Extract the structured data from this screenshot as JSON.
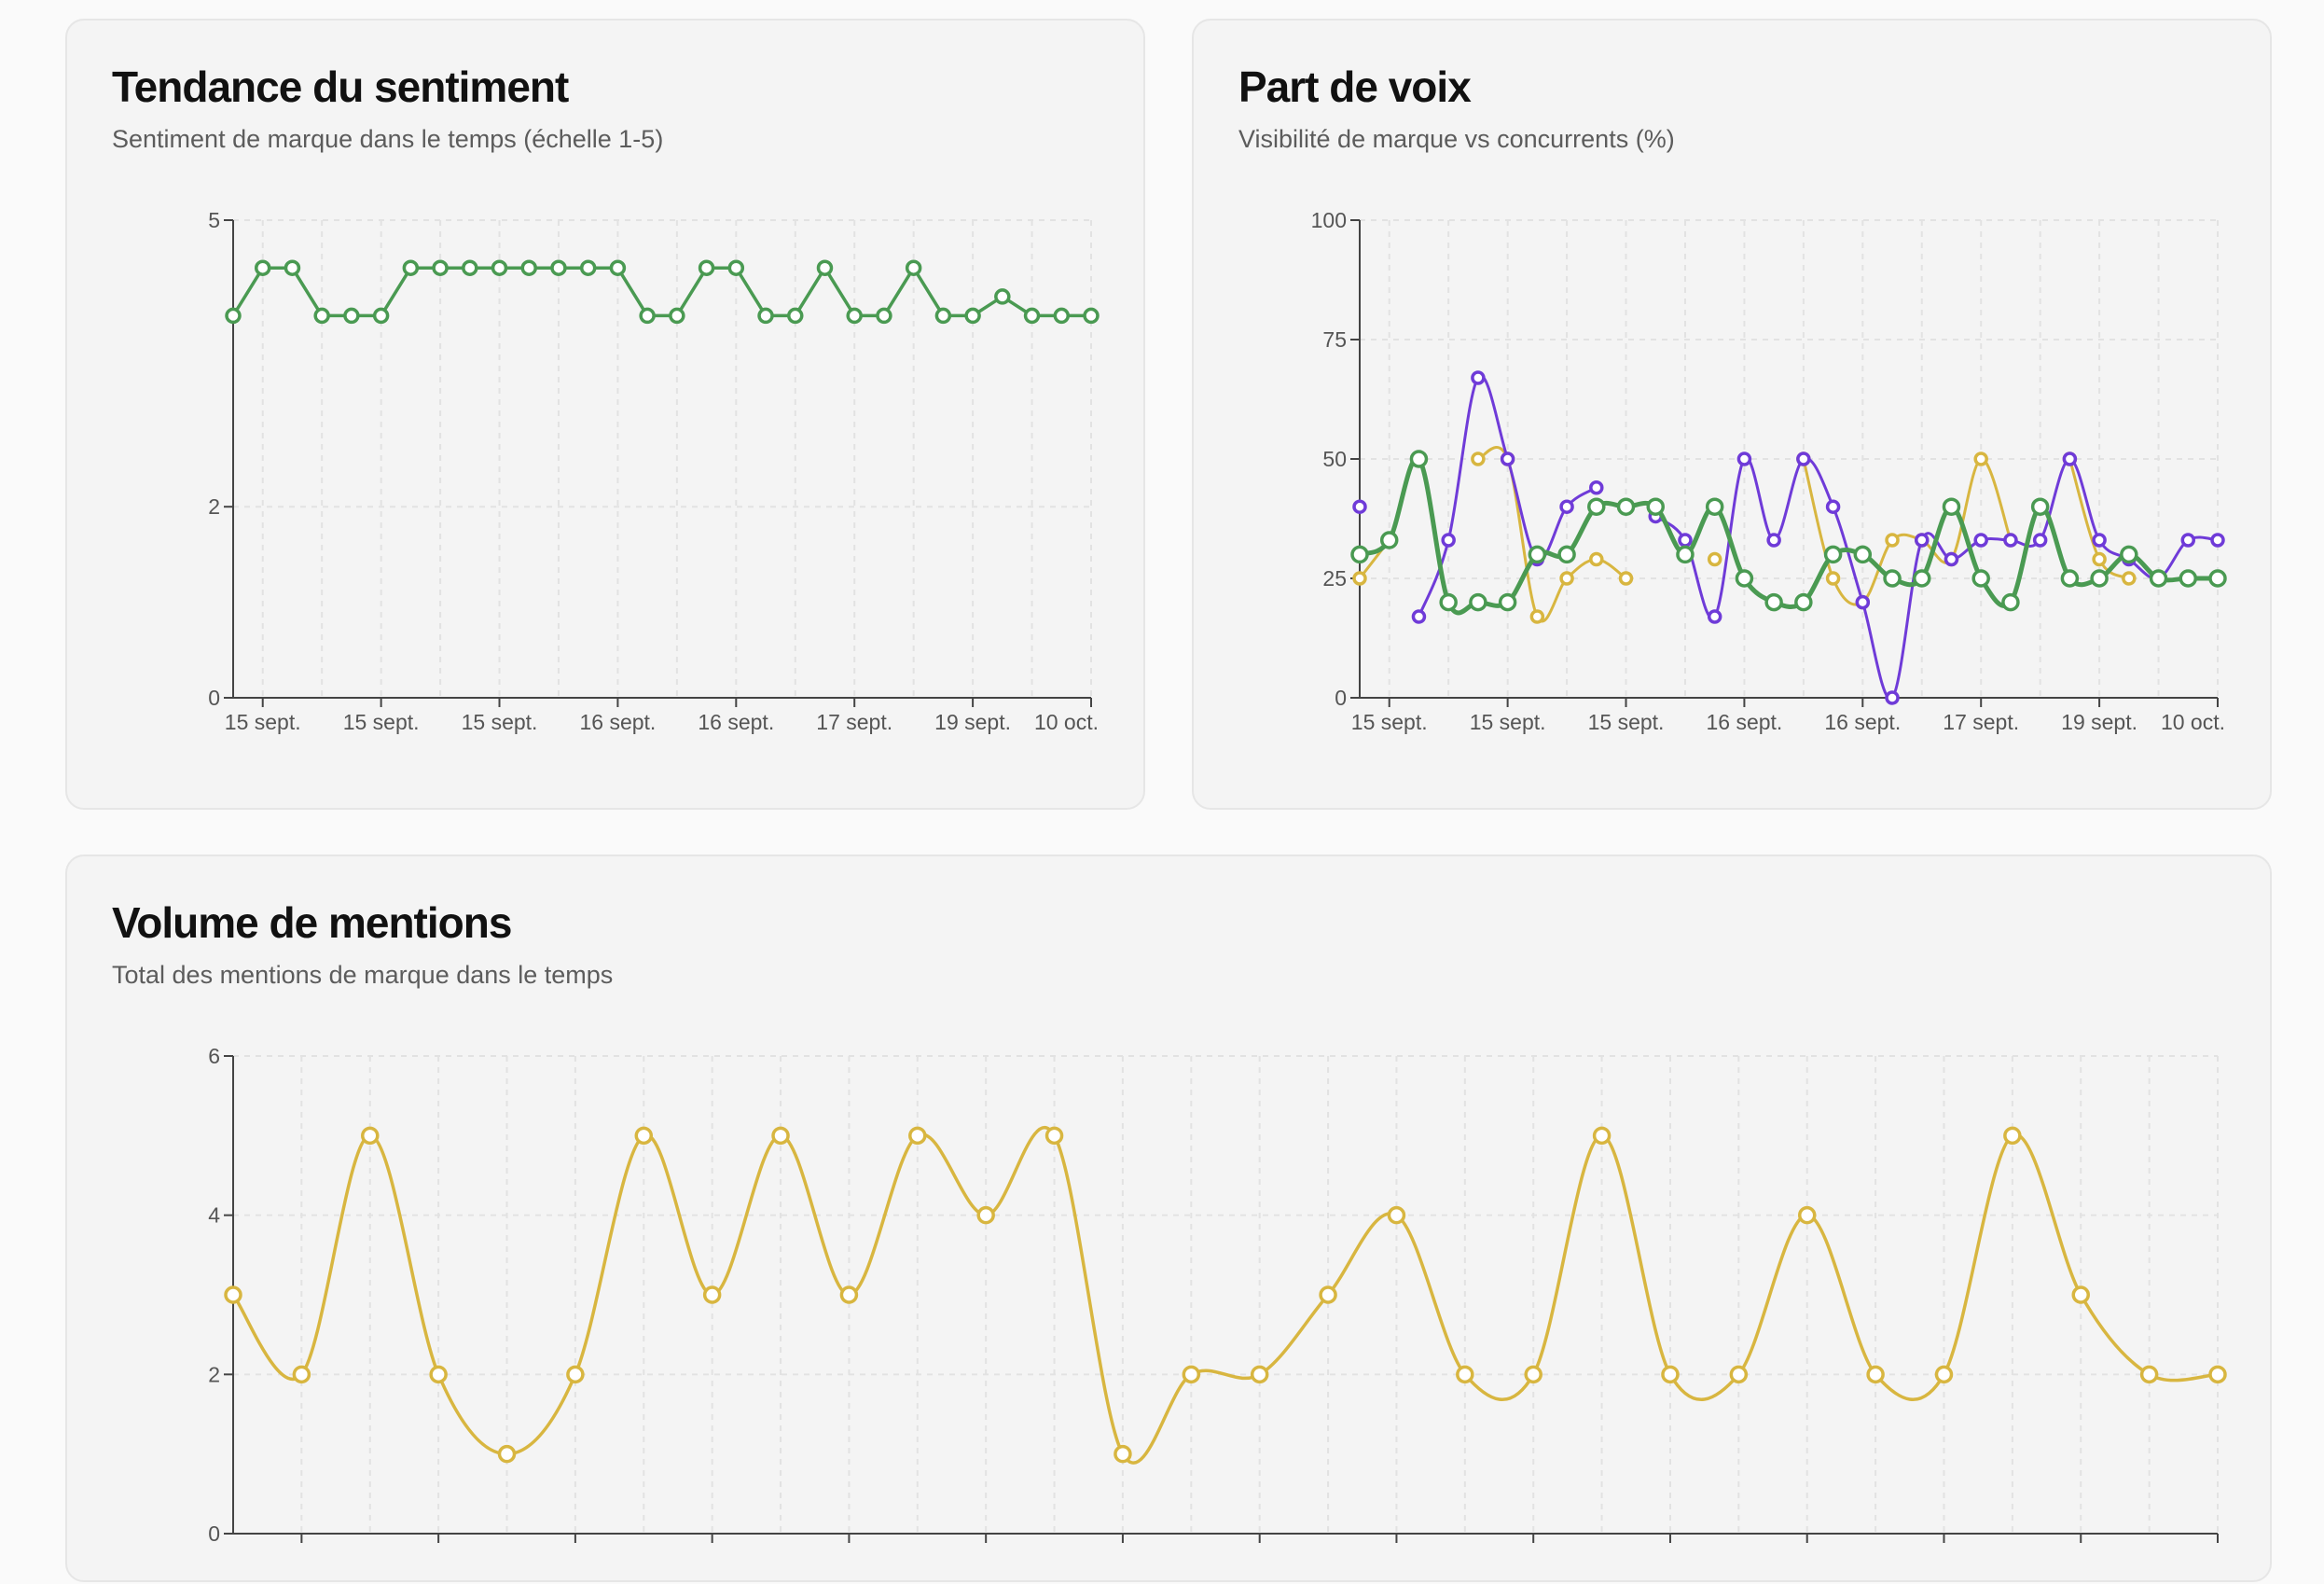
{
  "cards": {
    "sentiment": {
      "title": "Tendance du sentiment",
      "subtitle": "Sentiment de marque dans le temps (échelle 1-5)"
    },
    "share_of_voice": {
      "title": "Part de voix",
      "subtitle": "Visibilité de marque vs concurrents (%)"
    },
    "mentions": {
      "title": "Volume de mentions",
      "subtitle": "Total des mentions de marque dans le temps"
    }
  },
  "colors": {
    "green": "#4a9a52",
    "yellow": "#d8b640",
    "purple": "#6f3bd8",
    "axis": "#444444",
    "grid": "#e2e2e2"
  },
  "chart_data": [
    {
      "id": "sentiment",
      "type": "line",
      "title": "Tendance du sentiment",
      "x_tick_labels": [
        "15 sept.",
        "15 sept.",
        "15 sept.",
        "16 sept.",
        "16 sept.",
        "17 sept.",
        "19 sept.",
        "10 oct."
      ],
      "y_ticks": [
        0,
        2,
        5
      ],
      "ylim": [
        0,
        5
      ],
      "grid": true,
      "series": [
        {
          "color": "green",
          "values": [
            4,
            4.5,
            4.5,
            4,
            4,
            4,
            4.5,
            4.5,
            4.5,
            4.5,
            4.5,
            4.5,
            4.5,
            4.5,
            4,
            4,
            4.5,
            4.5,
            4,
            4,
            4.5,
            4,
            4,
            4.5,
            4,
            4,
            4.2,
            4,
            4,
            4
          ]
        }
      ]
    },
    {
      "id": "share_of_voice",
      "type": "line",
      "title": "Part de voix",
      "x_tick_labels": [
        "15 sept.",
        "15 sept.",
        "15 sept.",
        "16 sept.",
        "16 sept.",
        "17 sept.",
        "19 sept.",
        "10 oct."
      ],
      "y_ticks": [
        0,
        25,
        50,
        75,
        100
      ],
      "ylim": [
        0,
        100
      ],
      "grid": true,
      "series": [
        {
          "color": "yellow",
          "values": [
            25,
            33,
            null,
            null,
            50,
            50,
            17,
            25,
            29,
            25,
            null,
            null,
            29,
            null,
            null,
            50,
            25,
            20,
            33,
            33,
            29,
            50,
            33,
            null,
            50,
            29,
            25,
            null,
            null,
            null
          ]
        },
        {
          "color": "purple",
          "values": [
            40,
            null,
            17,
            33,
            67,
            50,
            29,
            40,
            44,
            null,
            38,
            33,
            17,
            50,
            33,
            50,
            40,
            20,
            0,
            33,
            29,
            33,
            33,
            33,
            50,
            33,
            29,
            25,
            33,
            33
          ]
        },
        {
          "color": "green",
          "values": [
            30,
            33,
            50,
            20,
            20,
            20,
            30,
            30,
            40,
            40,
            40,
            30,
            40,
            25,
            20,
            20,
            30,
            30,
            25,
            25,
            40,
            25,
            20,
            40,
            25,
            25,
            30,
            25,
            25,
            25
          ]
        }
      ]
    },
    {
      "id": "mentions",
      "type": "line",
      "title": "Volume de mentions",
      "x_tick_labels": [],
      "y_ticks": [
        0,
        2,
        4,
        6
      ],
      "ylim": [
        0,
        6
      ],
      "grid": true,
      "series": [
        {
          "color": "yellow",
          "values": [
            3,
            2,
            5,
            2,
            1,
            2,
            5,
            3,
            5,
            3,
            5,
            4,
            5,
            1,
            2,
            2,
            3,
            4,
            2,
            2,
            5,
            2,
            2,
            4,
            2,
            2,
            5,
            3,
            2,
            2
          ]
        }
      ]
    }
  ]
}
